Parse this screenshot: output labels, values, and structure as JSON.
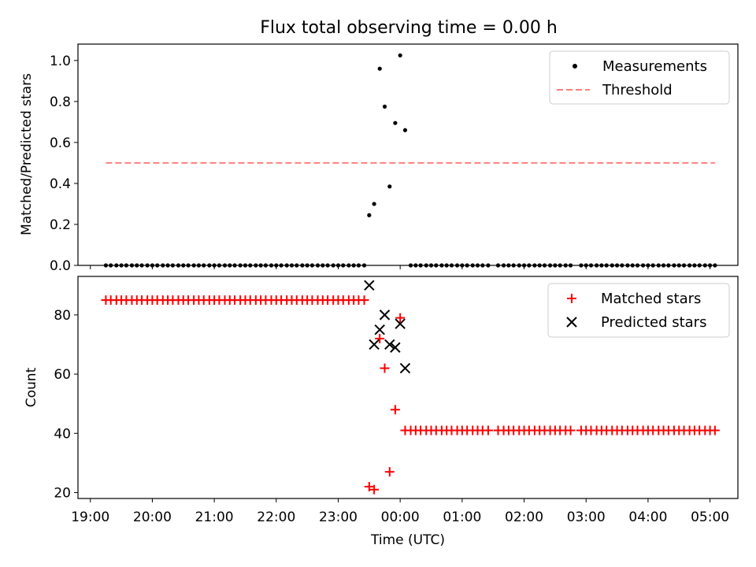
{
  "chart_data": {
    "title": "Flux total observing time = 0.00 h",
    "xlabel": "Time (UTC)",
    "xlim_hours": [
      18.8,
      29.45
    ],
    "xticks": [
      {
        "value": 19,
        "label": "19:00"
      },
      {
        "value": 20,
        "label": "20:00"
      },
      {
        "value": 21,
        "label": "21:00"
      },
      {
        "value": 22,
        "label": "22:00"
      },
      {
        "value": 23,
        "label": "23:00"
      },
      {
        "value": 24,
        "label": "00:00"
      },
      {
        "value": 25,
        "label": "01:00"
      },
      {
        "value": 26,
        "label": "02:00"
      },
      {
        "value": 27,
        "label": "03:00"
      },
      {
        "value": 28,
        "label": "04:00"
      },
      {
        "value": 29,
        "label": "05:00"
      }
    ],
    "panels": [
      {
        "type": "scatter",
        "ylabel": "Matched/Predicted stars",
        "ylim": [
          0,
          1.08
        ],
        "yticks": [
          {
            "value": 0.0,
            "label": "0.0"
          },
          {
            "value": 0.2,
            "label": "0.2"
          },
          {
            "value": 0.4,
            "label": "0.4"
          },
          {
            "value": 0.6,
            "label": "0.6"
          },
          {
            "value": 0.8,
            "label": "0.8"
          },
          {
            "value": 1.0,
            "label": "1.0"
          }
        ],
        "legend_position": "top-right",
        "series": [
          {
            "name": "Measurements",
            "marker": "dot",
            "color": "#000000",
            "x": [
              19.25,
              19.33,
              19.42,
              19.5,
              19.58,
              19.67,
              19.75,
              19.83,
              19.92,
              20.0,
              20.08,
              20.17,
              20.25,
              20.33,
              20.42,
              20.5,
              20.58,
              20.67,
              20.75,
              20.83,
              20.92,
              21.0,
              21.08,
              21.17,
              21.25,
              21.33,
              21.42,
              21.5,
              21.58,
              21.67,
              21.75,
              21.83,
              21.92,
              22.0,
              22.08,
              22.17,
              22.25,
              22.33,
              22.42,
              22.5,
              22.58,
              22.67,
              22.75,
              22.83,
              22.92,
              23.0,
              23.08,
              23.17,
              23.25,
              23.33,
              23.42,
              23.5,
              23.58,
              23.67,
              23.75,
              23.83,
              23.92,
              24.0,
              24.08,
              24.17,
              24.25,
              24.33,
              24.42,
              24.5,
              24.58,
              24.67,
              24.75,
              24.83,
              24.92,
              25.0,
              25.08,
              25.17,
              25.25,
              25.33,
              25.42,
              25.58,
              25.67,
              25.75,
              25.83,
              25.92,
              26.0,
              26.08,
              26.17,
              26.25,
              26.33,
              26.42,
              26.5,
              26.58,
              26.67,
              26.75,
              26.92,
              27.0,
              27.08,
              27.17,
              27.25,
              27.33,
              27.42,
              27.5,
              27.58,
              27.67,
              27.75,
              27.83,
              27.92,
              28.0,
              28.08,
              28.17,
              28.25,
              28.33,
              28.42,
              28.5,
              28.58,
              28.67,
              28.75,
              28.83,
              28.92,
              29.0,
              29.08
            ],
            "y": [
              0,
              0,
              0,
              0,
              0,
              0,
              0,
              0,
              0,
              0,
              0,
              0,
              0,
              0,
              0,
              0,
              0,
              0,
              0,
              0,
              0,
              0,
              0,
              0,
              0,
              0,
              0,
              0,
              0,
              0,
              0,
              0,
              0,
              0,
              0,
              0,
              0,
              0,
              0,
              0,
              0,
              0,
              0,
              0,
              0,
              0,
              0,
              0,
              0,
              0,
              0,
              0.245,
              0.3,
              0.96,
              0.775,
              0.385,
              0.695,
              1.025,
              0.66,
              0,
              0,
              0,
              0,
              0,
              0,
              0,
              0,
              0,
              0,
              0,
              0,
              0,
              0,
              0,
              0,
              0,
              0,
              0,
              0,
              0,
              0,
              0,
              0,
              0,
              0,
              0,
              0,
              0,
              0,
              0,
              0,
              0,
              0,
              0,
              0,
              0,
              0,
              0,
              0,
              0,
              0,
              0,
              0,
              0,
              0,
              0,
              0,
              0,
              0,
              0,
              0,
              0,
              0,
              0,
              0,
              0,
              0
            ]
          },
          {
            "name": "Threshold",
            "marker": "dashed-line",
            "color": "#ff7f7f",
            "x": [
              19.25,
              29.08
            ],
            "y": [
              0.5,
              0.5
            ]
          }
        ]
      },
      {
        "type": "scatter",
        "ylabel": "Count",
        "ylim": [
          18,
          93
        ],
        "yticks": [
          {
            "value": 20,
            "label": "20"
          },
          {
            "value": 40,
            "label": "40"
          },
          {
            "value": 60,
            "label": "60"
          },
          {
            "value": 80,
            "label": "80"
          }
        ],
        "legend_position": "top-right",
        "series": [
          {
            "name": "Matched stars",
            "marker": "plus",
            "color": "#ff0000",
            "x": [
              19.25,
              19.33,
              19.42,
              19.5,
              19.58,
              19.67,
              19.75,
              19.83,
              19.92,
              20.0,
              20.08,
              20.17,
              20.25,
              20.33,
              20.42,
              20.5,
              20.58,
              20.67,
              20.75,
              20.83,
              20.92,
              21.0,
              21.08,
              21.17,
              21.25,
              21.33,
              21.42,
              21.5,
              21.58,
              21.67,
              21.75,
              21.83,
              21.92,
              22.0,
              22.08,
              22.17,
              22.25,
              22.33,
              22.42,
              22.5,
              22.58,
              22.67,
              22.75,
              22.83,
              22.92,
              23.0,
              23.08,
              23.17,
              23.25,
              23.33,
              23.42,
              23.5,
              23.58,
              23.67,
              23.75,
              23.83,
              23.92,
              24.0,
              24.08,
              24.17,
              24.25,
              24.33,
              24.42,
              24.5,
              24.58,
              24.67,
              24.75,
              24.83,
              24.92,
              25.0,
              25.08,
              25.17,
              25.25,
              25.33,
              25.42,
              25.58,
              25.67,
              25.75,
              25.83,
              25.92,
              26.0,
              26.08,
              26.17,
              26.25,
              26.33,
              26.42,
              26.5,
              26.58,
              26.67,
              26.75,
              26.92,
              27.0,
              27.08,
              27.17,
              27.25,
              27.33,
              27.42,
              27.5,
              27.58,
              27.67,
              27.75,
              27.83,
              27.92,
              28.0,
              28.08,
              28.17,
              28.25,
              28.33,
              28.42,
              28.5,
              28.58,
              28.67,
              28.75,
              28.83,
              28.92,
              29.0,
              29.08
            ],
            "y": [
              85,
              85,
              85,
              85,
              85,
              85,
              85,
              85,
              85,
              85,
              85,
              85,
              85,
              85,
              85,
              85,
              85,
              85,
              85,
              85,
              85,
              85,
              85,
              85,
              85,
              85,
              85,
              85,
              85,
              85,
              85,
              85,
              85,
              85,
              85,
              85,
              85,
              85,
              85,
              85,
              85,
              85,
              85,
              85,
              85,
              85,
              85,
              85,
              85,
              85,
              85,
              22,
              21,
              72,
              62,
              27,
              48,
              79,
              41,
              41,
              41,
              41,
              41,
              41,
              41,
              41,
              41,
              41,
              41,
              41,
              41,
              41,
              41,
              41,
              41,
              41,
              41,
              41,
              41,
              41,
              41,
              41,
              41,
              41,
              41,
              41,
              41,
              41,
              41,
              41,
              41,
              41,
              41,
              41,
              41,
              41,
              41,
              41,
              41,
              41,
              41,
              41,
              41,
              41,
              41,
              41,
              41,
              41,
              41,
              41,
              41,
              41,
              41,
              41,
              41,
              41,
              41
            ]
          },
          {
            "name": "Predicted stars",
            "marker": "x",
            "color": "#000000",
            "x": [
              23.5,
              23.58,
              23.67,
              23.75,
              23.83,
              23.92,
              24.0,
              24.08
            ],
            "y": [
              90,
              70,
              75,
              80,
              70,
              69,
              77,
              62
            ]
          }
        ]
      }
    ]
  }
}
